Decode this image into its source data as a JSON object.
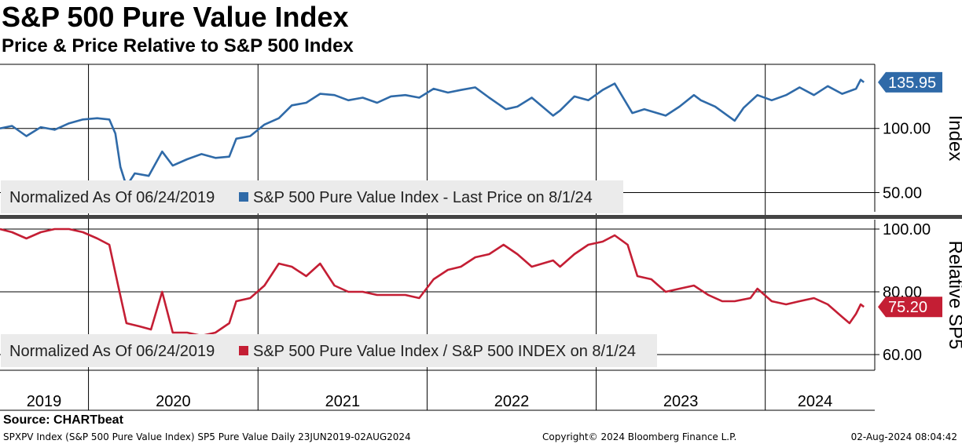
{
  "header": {
    "title": "S&P 500 Pure Value Index",
    "subtitle": "Price & Price Relative to S&P 500 Index"
  },
  "colors": {
    "price": "#2f6aa8",
    "relative": "#c41e34",
    "legend_bg": "#ebebeb",
    "grid": "#000000"
  },
  "chart_data": [
    {
      "type": "line",
      "title": "",
      "ylabel": "Index",
      "ylim": [
        35,
        150
      ],
      "yticks": [
        50,
        100
      ],
      "ytick_labels": [
        "50.00",
        "100.00"
      ],
      "x_range": [
        "2019-06-24",
        "2024-08-02"
      ],
      "legend_prefix": "Normalized As Of 06/24/2019",
      "series": [
        {
          "name": "S&P 500 Pure Value Index - Last Price on 8/1/24",
          "last_value_label": "135.95",
          "points": [
            [
              "2019-06-24",
              100
            ],
            [
              "2019-07-20",
              102
            ],
            [
              "2019-08-20",
              94
            ],
            [
              "2019-09-20",
              101
            ],
            [
              "2019-10-20",
              99
            ],
            [
              "2019-11-20",
              104
            ],
            [
              "2019-12-20",
              107
            ],
            [
              "2020-01-20",
              108
            ],
            [
              "2020-02-15",
              107
            ],
            [
              "2020-02-28",
              96
            ],
            [
              "2020-03-10",
              70
            ],
            [
              "2020-03-23",
              55
            ],
            [
              "2020-04-10",
              65
            ],
            [
              "2020-05-10",
              63
            ],
            [
              "2020-06-08",
              82
            ],
            [
              "2020-07-01",
              71
            ],
            [
              "2020-08-01",
              76
            ],
            [
              "2020-09-01",
              80
            ],
            [
              "2020-10-01",
              77
            ],
            [
              "2020-10-31",
              78
            ],
            [
              "2020-11-15",
              92
            ],
            [
              "2020-12-15",
              94
            ],
            [
              "2021-01-15",
              103
            ],
            [
              "2021-02-15",
              108
            ],
            [
              "2021-03-15",
              118
            ],
            [
              "2021-04-15",
              120
            ],
            [
              "2021-05-15",
              127
            ],
            [
              "2021-06-15",
              126
            ],
            [
              "2021-07-15",
              122
            ],
            [
              "2021-08-15",
              124
            ],
            [
              "2021-09-15",
              120
            ],
            [
              "2021-10-15",
              125
            ],
            [
              "2021-11-15",
              126
            ],
            [
              "2021-12-15",
              124
            ],
            [
              "2022-01-15",
              131
            ],
            [
              "2022-02-15",
              128
            ],
            [
              "2022-03-15",
              130
            ],
            [
              "2022-04-15",
              132
            ],
            [
              "2022-05-15",
              124
            ],
            [
              "2022-06-20",
              115
            ],
            [
              "2022-07-15",
              117
            ],
            [
              "2022-08-15",
              124
            ],
            [
              "2022-09-30",
              110
            ],
            [
              "2022-10-15",
              114
            ],
            [
              "2022-11-15",
              125
            ],
            [
              "2022-12-15",
              122
            ],
            [
              "2023-01-15",
              130
            ],
            [
              "2023-02-10",
              135
            ],
            [
              "2023-03-20",
              112
            ],
            [
              "2023-04-15",
              115
            ],
            [
              "2023-05-31",
              110
            ],
            [
              "2023-06-30",
              117
            ],
            [
              "2023-07-31",
              126
            ],
            [
              "2023-08-15",
              122
            ],
            [
              "2023-09-15",
              117
            ],
            [
              "2023-10-27",
              106
            ],
            [
              "2023-11-15",
              116
            ],
            [
              "2023-12-15",
              126
            ],
            [
              "2024-01-15",
              122
            ],
            [
              "2024-02-15",
              126
            ],
            [
              "2024-03-15",
              132
            ],
            [
              "2024-04-15",
              126
            ],
            [
              "2024-05-15",
              133
            ],
            [
              "2024-06-15",
              127
            ],
            [
              "2024-07-15",
              131
            ],
            [
              "2024-07-25",
              138
            ],
            [
              "2024-08-01",
              136
            ]
          ]
        }
      ]
    },
    {
      "type": "line",
      "title": "",
      "ylabel": "Relative SP5",
      "ylim": [
        55,
        103
      ],
      "yticks": [
        60,
        80,
        100
      ],
      "ytick_labels": [
        "60.00",
        "80.00",
        "100.00"
      ],
      "x_range": [
        "2019-06-24",
        "2024-08-02"
      ],
      "legend_prefix": "Normalized As Of 06/24/2019",
      "series": [
        {
          "name": "S&P 500 Pure Value Index / S&P 500 INDEX on 8/1/24",
          "last_value_label": "75.20",
          "points": [
            [
              "2019-06-24",
              100
            ],
            [
              "2019-07-20",
              99
            ],
            [
              "2019-08-20",
              97
            ],
            [
              "2019-09-20",
              99
            ],
            [
              "2019-10-20",
              100
            ],
            [
              "2019-11-20",
              100
            ],
            [
              "2019-12-20",
              99
            ],
            [
              "2020-01-20",
              97
            ],
            [
              "2020-02-15",
              95
            ],
            [
              "2020-03-05",
              82
            ],
            [
              "2020-03-23",
              70
            ],
            [
              "2020-04-20",
              69
            ],
            [
              "2020-05-15",
              68
            ],
            [
              "2020-06-08",
              80
            ],
            [
              "2020-07-01",
              67
            ],
            [
              "2020-08-01",
              67
            ],
            [
              "2020-09-01",
              66
            ],
            [
              "2020-10-01",
              67
            ],
            [
              "2020-10-31",
              70
            ],
            [
              "2020-11-15",
              77
            ],
            [
              "2020-12-15",
              78
            ],
            [
              "2021-01-15",
              82
            ],
            [
              "2021-02-15",
              89
            ],
            [
              "2021-03-15",
              88
            ],
            [
              "2021-04-15",
              85
            ],
            [
              "2021-05-15",
              89
            ],
            [
              "2021-06-15",
              82
            ],
            [
              "2021-07-15",
              80
            ],
            [
              "2021-08-15",
              80
            ],
            [
              "2021-09-15",
              79
            ],
            [
              "2021-10-15",
              79
            ],
            [
              "2021-11-15",
              79
            ],
            [
              "2021-12-15",
              78
            ],
            [
              "2022-01-15",
              84
            ],
            [
              "2022-02-15",
              87
            ],
            [
              "2022-03-15",
              88
            ],
            [
              "2022-04-15",
              91
            ],
            [
              "2022-05-15",
              92
            ],
            [
              "2022-06-15",
              95
            ],
            [
              "2022-07-15",
              92
            ],
            [
              "2022-08-15",
              88
            ],
            [
              "2022-09-30",
              90
            ],
            [
              "2022-10-15",
              88
            ],
            [
              "2022-11-15",
              92
            ],
            [
              "2022-12-15",
              95
            ],
            [
              "2023-01-15",
              96
            ],
            [
              "2023-02-10",
              98
            ],
            [
              "2023-03-10",
              95
            ],
            [
              "2023-03-31",
              85
            ],
            [
              "2023-04-30",
              84
            ],
            [
              "2023-05-31",
              80
            ],
            [
              "2023-06-30",
              81
            ],
            [
              "2023-07-31",
              82
            ],
            [
              "2023-08-31",
              79
            ],
            [
              "2023-09-30",
              77
            ],
            [
              "2023-10-27",
              77
            ],
            [
              "2023-11-30",
              78
            ],
            [
              "2023-12-15",
              81
            ],
            [
              "2024-01-15",
              77
            ],
            [
              "2024-02-15",
              76
            ],
            [
              "2024-03-15",
              77
            ],
            [
              "2024-04-15",
              78
            ],
            [
              "2024-05-15",
              76
            ],
            [
              "2024-06-15",
              72
            ],
            [
              "2024-07-01",
              70
            ],
            [
              "2024-07-15",
              73
            ],
            [
              "2024-07-25",
              76
            ],
            [
              "2024-08-01",
              75.2
            ]
          ]
        }
      ]
    }
  ],
  "x_axis": {
    "year_labels": [
      "2019",
      "2020",
      "2021",
      "2022",
      "2023",
      "2024"
    ]
  },
  "footer": {
    "source": "Source: CHARTbeat",
    "left": "SPXPV Index (S&P 500 Pure Value Index) SP5 Pure Value  Daily 23JUN2019-02AUG2024",
    "middle": "Copyright© 2024 Bloomberg Finance L.P.",
    "right": "02-Aug-2024 08:04:42"
  }
}
